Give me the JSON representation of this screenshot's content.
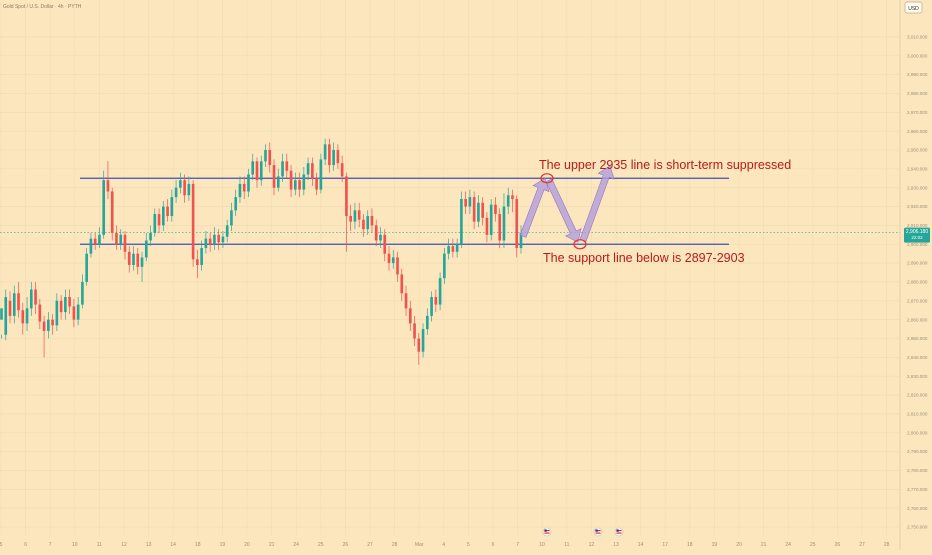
{
  "header": {
    "symbol_title": "Gold Spot / U.S. Dollar · 4h · PYTH"
  },
  "currency_badge": "USD",
  "colors": {
    "background": "#fbe6bd",
    "up_candle": "#26a69a",
    "down_candle": "#ef5350",
    "support_resistance_line": "#3f51b5",
    "annotation_text": "#b71c1c",
    "annotation_marker": "#e53935",
    "projection_arrow": "#b39ddb",
    "price_badge": "#26a69a",
    "axis_text": "#9e8f77"
  },
  "price_badge": {
    "price": "2,906.180",
    "countdown": "22:02"
  },
  "annotations": {
    "upper_note": "The upper 2935 line is short-term suppressed",
    "lower_note": "The support line below is 2897-2903"
  },
  "chart_data": {
    "type": "candlestick",
    "title": "Gold Spot / U.S. Dollar · 4h · PYTH",
    "ylim": [
      2745,
      3020
    ],
    "y_ticks": [
      "2,750.000",
      "2,760.000",
      "2,770.000",
      "2,780.000",
      "2,790.000",
      "2,800.000",
      "2,810.000",
      "2,820.000",
      "2,830.000",
      "2,840.000",
      "2,850.000",
      "2,860.000",
      "2,870.000",
      "2,880.000",
      "2,890.000",
      "2,900.000",
      "2,910.000",
      "2,920.000",
      "2,930.000",
      "2,940.000",
      "2,950.000",
      "2,960.000",
      "2,970.000",
      "2,980.000",
      "2,990.000",
      "3,000.000",
      "3,010.000"
    ],
    "x_ticks": [
      "5",
      "6",
      "7",
      "10",
      "11",
      "12",
      "13",
      "14",
      "18",
      "19",
      "20",
      "21",
      "24",
      "25",
      "26",
      "27",
      "28",
      "Mar",
      "4",
      "5",
      "6",
      "7",
      "10",
      "11",
      "12",
      "13",
      "14",
      "17",
      "18",
      "19",
      "20",
      "21",
      "24",
      "25",
      "26",
      "27",
      "28"
    ],
    "horizontal_levels": [
      2935,
      2900
    ],
    "last_price": 2906.18,
    "event_marker_count": 3,
    "candles": [
      [
        2860,
        2866,
        2852,
        2850
      ],
      [
        2852,
        2872,
        2876,
        2849
      ],
      [
        2870,
        2862,
        2875,
        2858
      ],
      [
        2862,
        2874,
        2878,
        2858
      ],
      [
        2874,
        2865,
        2880,
        2861
      ],
      [
        2865,
        2858,
        2869,
        2852
      ],
      [
        2858,
        2866,
        2872,
        2854
      ],
      [
        2866,
        2876,
        2880,
        2862
      ],
      [
        2876,
        2868,
        2880,
        2863
      ],
      [
        2868,
        2859,
        2871,
        2855
      ],
      [
        2859,
        2854,
        2862,
        2840
      ],
      [
        2854,
        2860,
        2864,
        2850
      ],
      [
        2860,
        2857,
        2863,
        2852
      ],
      [
        2857,
        2870,
        2874,
        2854
      ],
      [
        2870,
        2864,
        2873,
        2860
      ],
      [
        2864,
        2872,
        2876,
        2860
      ],
      [
        2872,
        2867,
        2876,
        2863
      ],
      [
        2867,
        2860,
        2871,
        2856
      ],
      [
        2860,
        2868,
        2872,
        2857
      ],
      [
        2868,
        2880,
        2884,
        2866
      ],
      [
        2880,
        2895,
        2898,
        2878
      ],
      [
        2895,
        2903,
        2906,
        2893
      ],
      [
        2903,
        2900,
        2906,
        2897
      ],
      [
        2900,
        2905,
        2909,
        2898
      ],
      [
        2905,
        2934,
        2939,
        2903
      ],
      [
        2934,
        2928,
        2944,
        2924
      ],
      [
        2928,
        2906,
        2930,
        2902
      ],
      [
        2906,
        2900,
        2910,
        2897
      ],
      [
        2900,
        2905,
        2908,
        2897
      ],
      [
        2905,
        2896,
        2907,
        2892
      ],
      [
        2896,
        2889,
        2899,
        2885
      ],
      [
        2889,
        2895,
        2899,
        2886
      ],
      [
        2895,
        2888,
        2898,
        2884
      ],
      [
        2888,
        2893,
        2896,
        2880
      ],
      [
        2893,
        2902,
        2906,
        2891
      ],
      [
        2902,
        2906,
        2910,
        2899
      ],
      [
        2906,
        2916,
        2919,
        2904
      ],
      [
        2916,
        2910,
        2919,
        2906
      ],
      [
        2910,
        2920,
        2923,
        2907
      ],
      [
        2920,
        2915,
        2924,
        2912
      ],
      [
        2915,
        2925,
        2929,
        2912
      ],
      [
        2925,
        2930,
        2934,
        2922
      ],
      [
        2930,
        2934,
        2938,
        2927
      ],
      [
        2934,
        2926,
        2937,
        2922
      ],
      [
        2926,
        2932,
        2936,
        2923
      ],
      [
        2932,
        2892,
        2934,
        2888
      ],
      [
        2892,
        2889,
        2897,
        2882
      ],
      [
        2889,
        2898,
        2902,
        2886
      ],
      [
        2898,
        2903,
        2907,
        2895
      ],
      [
        2903,
        2900,
        2906,
        2896
      ],
      [
        2900,
        2905,
        2909,
        2897
      ],
      [
        2905,
        2901,
        2908,
        2897
      ],
      [
        2901,
        2904,
        2907,
        2898
      ],
      [
        2904,
        2910,
        2913,
        2901
      ],
      [
        2910,
        2918,
        2922,
        2907
      ],
      [
        2918,
        2925,
        2929,
        2915
      ],
      [
        2925,
        2932,
        2936,
        2922
      ],
      [
        2932,
        2928,
        2936,
        2924
      ],
      [
        2928,
        2937,
        2940,
        2925
      ],
      [
        2937,
        2944,
        2948,
        2934
      ],
      [
        2944,
        2934,
        2946,
        2930
      ],
      [
        2934,
        2944,
        2947,
        2931
      ],
      [
        2944,
        2950,
        2953,
        2941
      ],
      [
        2950,
        2942,
        2954,
        2938
      ],
      [
        2942,
        2930,
        2945,
        2926
      ],
      [
        2930,
        2936,
        2940,
        2928
      ],
      [
        2936,
        2944,
        2948,
        2933
      ],
      [
        2944,
        2939,
        2948,
        2935
      ],
      [
        2939,
        2929,
        2942,
        2925
      ],
      [
        2929,
        2934,
        2938,
        2926
      ],
      [
        2934,
        2929,
        2938,
        2925
      ],
      [
        2929,
        2937,
        2941,
        2926
      ],
      [
        2937,
        2943,
        2946,
        2934
      ],
      [
        2943,
        2935,
        2946,
        2931
      ],
      [
        2935,
        2929,
        2938,
        2926
      ],
      [
        2929,
        2945,
        2948,
        2927
      ],
      [
        2945,
        2953,
        2956,
        2942
      ],
      [
        2953,
        2942,
        2956,
        2938
      ],
      [
        2942,
        2950,
        2954,
        2939
      ],
      [
        2950,
        2943,
        2953,
        2940
      ],
      [
        2943,
        2936,
        2947,
        2933
      ],
      [
        2936,
        2915,
        2938,
        2896
      ],
      [
        2915,
        2912,
        2921,
        2907
      ],
      [
        2912,
        2918,
        2922,
        2908
      ],
      [
        2918,
        2913,
        2922,
        2909
      ],
      [
        2913,
        2908,
        2916,
        2904
      ],
      [
        2908,
        2915,
        2918,
        2905
      ],
      [
        2915,
        2910,
        2919,
        2906
      ],
      [
        2910,
        2902,
        2913,
        2899
      ],
      [
        2902,
        2905,
        2909,
        2898
      ],
      [
        2905,
        2895,
        2908,
        2891
      ],
      [
        2895,
        2890,
        2899,
        2886
      ],
      [
        2890,
        2893,
        2897,
        2887
      ],
      [
        2893,
        2884,
        2896,
        2880
      ],
      [
        2884,
        2874,
        2887,
        2870
      ],
      [
        2874,
        2866,
        2878,
        2862
      ],
      [
        2866,
        2858,
        2870,
        2854
      ],
      [
        2858,
        2850,
        2862,
        2846
      ],
      [
        2850,
        2843,
        2853,
        2836
      ],
      [
        2843,
        2855,
        2858,
        2840
      ],
      [
        2855,
        2862,
        2866,
        2852
      ],
      [
        2862,
        2872,
        2875,
        2859
      ],
      [
        2872,
        2868,
        2876,
        2864
      ],
      [
        2868,
        2882,
        2885,
        2865
      ],
      [
        2882,
        2895,
        2898,
        2879
      ],
      [
        2895,
        2899,
        2903,
        2892
      ],
      [
        2899,
        2896,
        2903,
        2893
      ],
      [
        2896,
        2900,
        2903,
        2893
      ],
      [
        2900,
        2924,
        2928,
        2898
      ],
      [
        2924,
        2920,
        2928,
        2916
      ],
      [
        2920,
        2925,
        2929,
        2916
      ],
      [
        2925,
        2912,
        2928,
        2908
      ],
      [
        2912,
        2922,
        2926,
        2909
      ],
      [
        2922,
        2914,
        2925,
        2910
      ],
      [
        2914,
        2905,
        2917,
        2901
      ],
      [
        2905,
        2921,
        2924,
        2902
      ],
      [
        2921,
        2916,
        2925,
        2912
      ],
      [
        2916,
        2902,
        2919,
        2898
      ],
      [
        2902,
        2920,
        2927,
        2898
      ],
      [
        2920,
        2926,
        2930,
        2916
      ],
      [
        2926,
        2924,
        2929,
        2917
      ],
      [
        2924,
        2898,
        2926,
        2893
      ],
      [
        2898,
        2906,
        2910,
        2895
      ]
    ]
  }
}
